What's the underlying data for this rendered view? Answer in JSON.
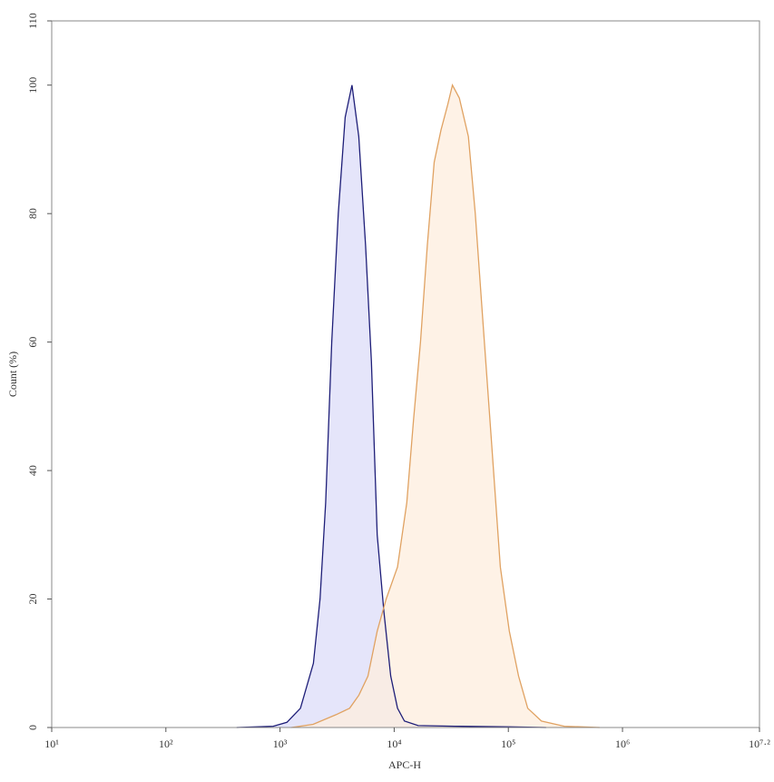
{
  "chart_data": {
    "type": "histogram-overlay",
    "x_label": "APC-H",
    "y_label": "Count (%)",
    "log_x": true,
    "xlim": [
      10,
      15848932
    ],
    "ylim": [
      0,
      110
    ],
    "xticks": [
      {
        "value": 10,
        "label": "10¹"
      },
      {
        "value": 100,
        "label": "10²"
      },
      {
        "value": 1000,
        "label": "10³"
      },
      {
        "value": 10000,
        "label": "10⁴"
      },
      {
        "value": 100000,
        "label": "10⁵"
      },
      {
        "value": 1000000,
        "label": "10⁶"
      },
      {
        "value": 15848932,
        "label": "10⁷·²"
      }
    ],
    "yticks": [
      0,
      20,
      40,
      60,
      80,
      100,
      110
    ],
    "series": [
      {
        "color": "#1e1e78",
        "fill": "#dcdcf8",
        "x": [
          417,
          871,
          1150,
          1510,
          1960,
          2240,
          2510,
          2840,
          3240,
          3720,
          4270,
          4900,
          5620,
          6310,
          7100,
          8130,
          9330,
          10700,
          12300,
          16200,
          33900,
          102000,
          214000
        ],
        "values": [
          0,
          0.2,
          0.8,
          3,
          10,
          20,
          35,
          60,
          80,
          95,
          100,
          92,
          75,
          57,
          30,
          18,
          8,
          3,
          1,
          0.3,
          0.2,
          0.1,
          0
        ]
      },
      {
        "color": "#e0a262",
        "fill": "#fdeedd",
        "x": [
          1260,
          1950,
          3090,
          4070,
          4900,
          5890,
          7100,
          8510,
          10700,
          12900,
          14800,
          17000,
          19500,
          22400,
          25700,
          29500,
          32400,
          37200,
          44700,
          51300,
          58900,
          70800,
          85100,
          102000,
          123000,
          148000,
          195000,
          309000,
          631000
        ],
        "values": [
          0,
          0.5,
          2,
          3,
          5,
          8,
          15,
          20,
          25,
          35,
          48,
          60,
          75,
          88,
          93,
          97,
          100,
          98,
          92,
          80,
          65,
          45,
          25,
          15,
          8,
          3,
          1,
          0.2,
          0
        ]
      }
    ]
  }
}
